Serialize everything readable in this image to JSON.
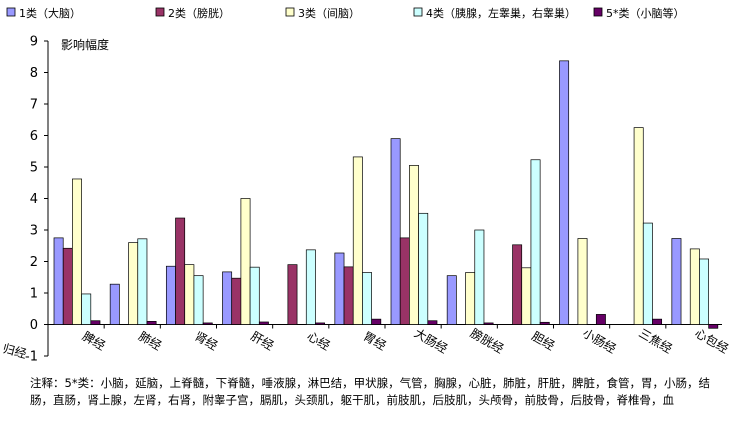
{
  "chart_data": {
    "type": "bar",
    "ylabel": "影响幅度",
    "ylim": [
      -1,
      9
    ],
    "yticks": [
      -1,
      0,
      1,
      2,
      3,
      4,
      5,
      6,
      7,
      8,
      9
    ],
    "grid": false,
    "legend_position": "top",
    "categories": [
      "脾经",
      "肺经",
      "肾经",
      "肝经",
      "心经",
      "胃经",
      "大肠经",
      "膀胱经",
      "胆经",
      "小肠经",
      "三焦经",
      "心包经"
    ],
    "series": [
      {
        "name": "1类（大脑）",
        "color": "#9999ff",
        "values": [
          2.75,
          1.28,
          1.85,
          1.67,
          0,
          2.27,
          5.9,
          1.55,
          0,
          8.37,
          0,
          2.73
        ]
      },
      {
        "name": "2类（膀胱）",
        "color": "#993366",
        "values": [
          2.42,
          0,
          3.38,
          1.47,
          1.9,
          1.83,
          2.75,
          0,
          2.53,
          0,
          0,
          0
        ]
      },
      {
        "name": "3类（间脑）",
        "color": "#ffffcc",
        "values": [
          4.62,
          2.6,
          1.9,
          4.0,
          0,
          5.32,
          5.05,
          1.65,
          1.8,
          2.73,
          6.25,
          2.4
        ]
      },
      {
        "name": "4类（胰腺，左睾巢，右睾巢）",
        "color": "#ccffff",
        "values": [
          0.97,
          2.72,
          1.55,
          1.82,
          2.37,
          1.65,
          3.53,
          3.0,
          5.23,
          0,
          3.22,
          2.08
        ]
      },
      {
        "name": "5*类（小脑等）",
        "color": "#660066",
        "values": [
          0.12,
          0.1,
          0.05,
          0.08,
          0.05,
          0.17,
          0.12,
          0.05,
          0.07,
          0.32,
          0.17,
          -0.12
        ]
      }
    ],
    "extra_axis_text": "归经"
  },
  "note": "注释：5*类：小脑，延脑，上脊髓，下脊髓，唾液腺，淋巴结，甲状腺，气管，胸腺，心脏，肺脏，肝脏，脾脏，食管，胃，小肠，结肠，直肠，肾上腺，左肾，右肾，附睾子宫，膈肌，头颈肌，躯干肌，前肢肌，后肢肌，头颅骨，前肢骨，后肢骨，脊椎骨，血"
}
